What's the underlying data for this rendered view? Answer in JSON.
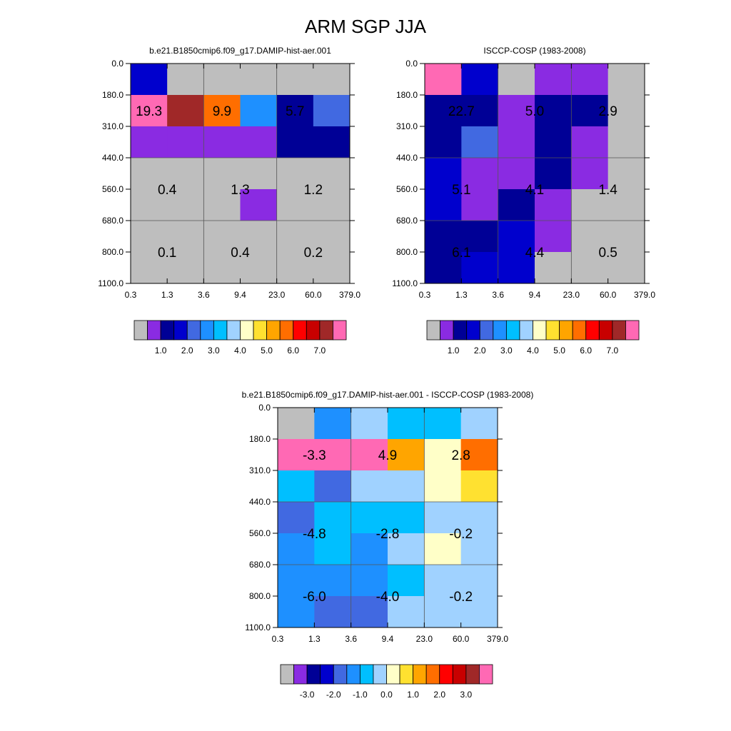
{
  "title": "ARM SGP JJA",
  "colors": {
    "missing": "#bebebe",
    "palette": [
      "#bebebe",
      "#8a2be2",
      "#000096",
      "#0000cd",
      "#4169e1",
      "#1e90ff",
      "#00bfff",
      "#a0d2ff",
      "#ffffc8",
      "#ffe130",
      "#ffa500",
      "#ff6e00",
      "#ff0000",
      "#c80000",
      "#a02828",
      "#ff69b4"
    ]
  },
  "chart_data": [
    {
      "type": "heatmap",
      "title": "b.e21.B1850cmip6.f09_g17.DAMIP-hist-aer.001",
      "x_ticks": [
        "0.3",
        "1.3",
        "3.6",
        "9.4",
        "23.0",
        "60.0",
        "379.0"
      ],
      "y_ticks": [
        "0.0",
        "180.0",
        "310.0",
        "440.0",
        "560.0",
        "680.0",
        "800.0",
        "1100.0"
      ],
      "cells": [
        [
          3,
          0,
          0,
          0,
          0,
          0
        ],
        [
          15,
          14,
          11,
          5,
          2,
          4
        ],
        [
          1,
          1,
          1,
          1,
          2,
          2
        ],
        [
          0,
          0,
          0,
          0,
          0,
          0
        ],
        [
          0,
          0,
          0,
          1,
          0,
          0
        ],
        [
          0,
          0,
          0,
          0,
          0,
          0
        ],
        [
          0,
          0,
          0,
          0,
          0,
          0
        ]
      ],
      "labels": [
        {
          "text": "19.3",
          "col": 0.5,
          "row": 1.5
        },
        {
          "text": "9.9",
          "col": 2.5,
          "row": 1.5
        },
        {
          "text": "5.7",
          "col": 4.5,
          "row": 1.5
        },
        {
          "text": "0.4",
          "col": 1,
          "row": 4
        },
        {
          "text": "1.3",
          "col": 3,
          "row": 4
        },
        {
          "text": "1.2",
          "col": 5,
          "row": 4
        },
        {
          "text": "0.1",
          "col": 1,
          "row": 6
        },
        {
          "text": "0.4",
          "col": 3,
          "row": 6
        },
        {
          "text": "0.2",
          "col": 5,
          "row": 6
        }
      ],
      "colorbar": {
        "labels": [
          {
            "text": "1.0",
            "at": 2
          },
          {
            "text": "2.0",
            "at": 4
          },
          {
            "text": "3.0",
            "at": 6
          },
          {
            "text": "4.0",
            "at": 8
          },
          {
            "text": "5.0",
            "at": 10
          },
          {
            "text": "6.0",
            "at": 12
          },
          {
            "text": "7.0",
            "at": 14
          }
        ]
      }
    },
    {
      "type": "heatmap",
      "title": "ISCCP-COSP (1983-2008)",
      "x_ticks": [
        "0.3",
        "1.3",
        "3.6",
        "9.4",
        "23.0",
        "60.0",
        "379.0"
      ],
      "y_ticks": [
        "0.0",
        "180.0",
        "310.0",
        "440.0",
        "560.0",
        "680.0",
        "800.0",
        "1100.0"
      ],
      "cells": [
        [
          15,
          3,
          0,
          1,
          1,
          0
        ],
        [
          2,
          2,
          1,
          2,
          2,
          0
        ],
        [
          2,
          4,
          1,
          2,
          1,
          0
        ],
        [
          3,
          1,
          1,
          2,
          1,
          0
        ],
        [
          3,
          1,
          2,
          1,
          0,
          0
        ],
        [
          2,
          2,
          3,
          1,
          0,
          0
        ],
        [
          2,
          3,
          3,
          0,
          0,
          0
        ]
      ],
      "labels": [
        {
          "text": "22.7",
          "col": 1,
          "row": 1.5
        },
        {
          "text": "5.0",
          "col": 3,
          "row": 1.5
        },
        {
          "text": "2.9",
          "col": 5,
          "row": 1.5
        },
        {
          "text": "5.1",
          "col": 1,
          "row": 4
        },
        {
          "text": "4.1",
          "col": 3,
          "row": 4
        },
        {
          "text": "1.4",
          "col": 5,
          "row": 4
        },
        {
          "text": "6.1",
          "col": 1,
          "row": 6
        },
        {
          "text": "4.4",
          "col": 3,
          "row": 6
        },
        {
          "text": "0.5",
          "col": 5,
          "row": 6
        }
      ],
      "colorbar": {
        "labels": [
          {
            "text": "1.0",
            "at": 2
          },
          {
            "text": "2.0",
            "at": 4
          },
          {
            "text": "3.0",
            "at": 6
          },
          {
            "text": "4.0",
            "at": 8
          },
          {
            "text": "5.0",
            "at": 10
          },
          {
            "text": "6.0",
            "at": 12
          },
          {
            "text": "7.0",
            "at": 14
          }
        ]
      }
    },
    {
      "type": "heatmap",
      "title": "b.e21.B1850cmip6.f09_g17.DAMIP-hist-aer.001 - ISCCP-COSP (1983-2008)",
      "x_ticks": [
        "0.3",
        "1.3",
        "3.6",
        "9.4",
        "23.0",
        "60.0",
        "379.0"
      ],
      "y_ticks": [
        "0.0",
        "180.0",
        "310.0",
        "440.0",
        "560.0",
        "680.0",
        "800.0",
        "1100.0"
      ],
      "cells": [
        [
          0,
          5,
          7,
          6,
          6,
          7
        ],
        [
          15,
          15,
          15,
          10,
          8,
          11
        ],
        [
          6,
          4,
          7,
          7,
          8,
          9
        ],
        [
          4,
          6,
          6,
          6,
          7,
          7
        ],
        [
          5,
          6,
          5,
          7,
          8,
          7
        ],
        [
          5,
          5,
          5,
          6,
          7,
          7
        ],
        [
          5,
          4,
          4,
          7,
          7,
          7
        ]
      ],
      "labels": [
        {
          "text": "-3.3",
          "col": 1,
          "row": 1.5
        },
        {
          "text": "4.9",
          "col": 3,
          "row": 1.5
        },
        {
          "text": "2.8",
          "col": 5,
          "row": 1.5
        },
        {
          "text": "-4.8",
          "col": 1,
          "row": 4
        },
        {
          "text": "-2.8",
          "col": 3,
          "row": 4
        },
        {
          "text": "-0.2",
          "col": 5,
          "row": 4
        },
        {
          "text": "-6.0",
          "col": 1,
          "row": 6
        },
        {
          "text": "-4.0",
          "col": 3,
          "row": 6
        },
        {
          "text": "-0.2",
          "col": 5,
          "row": 6
        }
      ],
      "colorbar": {
        "labels": [
          {
            "text": "-3.0",
            "at": 2
          },
          {
            "text": "-2.0",
            "at": 4
          },
          {
            "text": "-1.0",
            "at": 6
          },
          {
            "text": "0.0",
            "at": 8
          },
          {
            "text": "1.0",
            "at": 10
          },
          {
            "text": "2.0",
            "at": 12
          },
          {
            "text": "3.0",
            "at": 14
          }
        ]
      }
    }
  ]
}
